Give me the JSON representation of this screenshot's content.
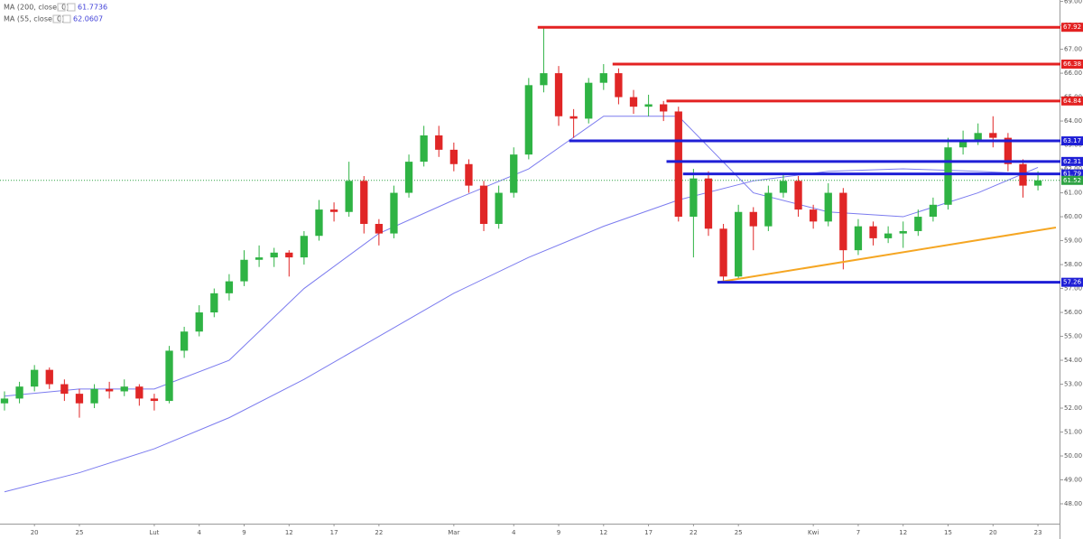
{
  "chart_data": {
    "type": "candlestick",
    "x": [
      0,
      1,
      2,
      3,
      4,
      5,
      6,
      7,
      8,
      9,
      10,
      11,
      12,
      13,
      14,
      15,
      16,
      17,
      18,
      19,
      20,
      21,
      22,
      23,
      24,
      25,
      26,
      27,
      28,
      29,
      30,
      31,
      32,
      33,
      34,
      35,
      36,
      37,
      38,
      39,
      40,
      41,
      42,
      43,
      44,
      45,
      46,
      47,
      48,
      49,
      50,
      51,
      52,
      53,
      54,
      55,
      56,
      57,
      58,
      59,
      60,
      61,
      62,
      63,
      64,
      65,
      66,
      67,
      68,
      69
    ],
    "open": [
      52.2,
      52.4,
      52.9,
      53.6,
      53.0,
      52.6,
      52.2,
      52.8,
      52.7,
      52.9,
      52.4,
      52.3,
      54.4,
      55.2,
      56.0,
      56.8,
      57.3,
      58.2,
      58.3,
      58.5,
      58.3,
      59.2,
      60.3,
      60.2,
      61.5,
      59.7,
      59.3,
      61.0,
      62.3,
      63.4,
      62.8,
      62.2,
      61.3,
      59.7,
      61.0,
      62.6,
      65.5,
      66.0,
      64.2,
      64.1,
      65.6,
      66.0,
      65.0,
      64.6,
      64.7,
      64.4,
      60.0,
      61.6,
      59.5,
      57.5,
      60.2,
      59.6,
      61.0,
      61.5,
      60.3,
      59.8,
      61.0,
      58.6,
      59.6,
      59.1,
      59.3,
      59.4,
      60.0,
      60.5,
      62.9,
      63.2,
      63.5,
      63.3,
      62.2,
      61.3
    ],
    "high": [
      52.7,
      53.1,
      53.8,
      53.7,
      53.2,
      52.8,
      53.0,
      53.1,
      53.2,
      53.0,
      52.6,
      54.6,
      55.4,
      56.3,
      57.0,
      57.6,
      58.6,
      58.8,
      58.7,
      58.6,
      59.4,
      60.7,
      60.6,
      62.3,
      61.7,
      59.9,
      61.3,
      62.6,
      63.8,
      63.8,
      63.1,
      62.4,
      61.5,
      61.3,
      62.9,
      65.8,
      67.92,
      66.3,
      64.5,
      65.8,
      66.38,
      66.2,
      65.3,
      65.1,
      64.84,
      64.6,
      62.0,
      61.9,
      59.7,
      60.5,
      60.4,
      61.3,
      61.8,
      61.7,
      60.5,
      61.4,
      61.2,
      59.9,
      59.8,
      59.6,
      59.8,
      60.3,
      60.8,
      63.3,
      63.6,
      63.9,
      64.2,
      63.5,
      62.4,
      61.9
    ],
    "low": [
      51.9,
      52.2,
      52.7,
      52.8,
      52.3,
      51.6,
      52.0,
      52.4,
      52.5,
      52.1,
      51.9,
      52.2,
      54.1,
      55.0,
      55.8,
      56.5,
      57.1,
      57.9,
      57.9,
      57.5,
      58.0,
      59.0,
      59.8,
      60.0,
      59.3,
      58.8,
      59.1,
      60.8,
      62.1,
      62.5,
      61.9,
      61.0,
      59.4,
      59.5,
      60.8,
      62.4,
      65.2,
      63.8,
      63.3,
      63.9,
      65.3,
      64.7,
      64.3,
      64.2,
      64.0,
      59.8,
      58.3,
      59.2,
      57.26,
      57.4,
      58.6,
      59.4,
      60.8,
      60.0,
      59.5,
      59.6,
      57.8,
      58.4,
      58.8,
      58.9,
      58.7,
      59.2,
      59.8,
      60.3,
      62.6,
      63.0,
      62.9,
      61.9,
      60.8,
      61.1
    ],
    "close": [
      52.4,
      52.9,
      53.6,
      53.0,
      52.6,
      52.2,
      52.8,
      52.7,
      52.9,
      52.4,
      52.3,
      54.4,
      55.2,
      56.0,
      56.8,
      57.3,
      58.2,
      58.3,
      58.5,
      58.3,
      59.2,
      60.3,
      60.2,
      61.5,
      59.7,
      59.3,
      61.0,
      62.3,
      63.4,
      62.8,
      62.2,
      61.3,
      59.7,
      61.0,
      62.6,
      65.5,
      66.0,
      64.2,
      64.1,
      65.6,
      66.0,
      65.0,
      64.6,
      64.7,
      64.4,
      60.0,
      61.6,
      59.5,
      57.5,
      60.2,
      59.6,
      61.0,
      61.5,
      60.3,
      59.8,
      61.0,
      58.6,
      59.6,
      59.1,
      59.3,
      59.4,
      60.0,
      60.5,
      62.9,
      63.2,
      63.5,
      63.3,
      62.2,
      61.3,
      61.52
    ],
    "up_color": "#2fb344",
    "down_color": "#e02626",
    "series": [
      {
        "name": "MA (200, close, 0)",
        "color": "#7b7bef",
        "last": 61.7736,
        "x": [
          0,
          5,
          10,
          15,
          20,
          25,
          30,
          35,
          40,
          45,
          50,
          55,
          60,
          65,
          69
        ],
        "values": [
          48.5,
          49.3,
          50.3,
          51.6,
          53.2,
          55.0,
          56.8,
          58.3,
          59.6,
          60.7,
          61.5,
          61.9,
          62.0,
          61.9,
          61.7736
        ]
      },
      {
        "name": "MA (55, close, 0)",
        "color": "#7b7bef",
        "last": 62.0607,
        "x": [
          0,
          5,
          10,
          15,
          20,
          25,
          30,
          35,
          40,
          45,
          50,
          55,
          60,
          65,
          69
        ],
        "values": [
          52.5,
          52.8,
          52.8,
          54.0,
          57.0,
          59.3,
          60.7,
          62.0,
          64.2,
          64.2,
          61.0,
          60.2,
          60.0,
          61.0,
          62.0607
        ]
      }
    ],
    "levels": [
      {
        "value": 67.92,
        "color": "#e32222",
        "from": 35.6
      },
      {
        "value": 66.38,
        "color": "#e32222",
        "from": 40.6
      },
      {
        "value": 64.84,
        "color": "#e32222",
        "from": 44.2
      },
      {
        "value": 63.17,
        "color": "#1f1fd6",
        "from": 37.7
      },
      {
        "value": 62.31,
        "color": "#1f1fd6",
        "from": 44.2
      },
      {
        "value": 61.79,
        "color": "#1f1fd6",
        "from": 45.3
      },
      {
        "value": 57.26,
        "color": "#1f1fd6",
        "from": 47.6
      }
    ],
    "price_line": {
      "value": 61.52,
      "color": "#2fa344"
    },
    "trendline": {
      "color": "#f5a623",
      "x": [
        47.6,
        70.2
      ],
      "values": [
        57.26,
        59.55
      ]
    },
    "xlim": [
      -0.3,
      70.2
    ],
    "ylim": [
      47.17,
      69.06
    ],
    "xticks": [
      {
        "value": 2,
        "label": "20"
      },
      {
        "value": 5,
        "label": "25"
      },
      {
        "value": 10,
        "label": "Lut"
      },
      {
        "value": 13,
        "label": "4"
      },
      {
        "value": 16,
        "label": "9"
      },
      {
        "value": 19,
        "label": "12"
      },
      {
        "value": 22,
        "label": "17"
      },
      {
        "value": 25,
        "label": "22"
      },
      {
        "value": 30,
        "label": "Mar"
      },
      {
        "value": 34,
        "label": "4"
      },
      {
        "value": 37,
        "label": "9"
      },
      {
        "value": 40,
        "label": "12"
      },
      {
        "value": 43,
        "label": "17"
      },
      {
        "value": 46,
        "label": "22"
      },
      {
        "value": 49,
        "label": "25"
      },
      {
        "value": 54,
        "label": "Kwi"
      },
      {
        "value": 57,
        "label": "7"
      },
      {
        "value": 60,
        "label": "12"
      },
      {
        "value": 63,
        "label": "15"
      },
      {
        "value": 66,
        "label": "20"
      },
      {
        "value": 69,
        "label": "23"
      }
    ],
    "yticks": [
      {
        "value": 48,
        "label": "48.00"
      },
      {
        "value": 49,
        "label": "49.00"
      },
      {
        "value": 50,
        "label": "50.00"
      },
      {
        "value": 51,
        "label": "51.00"
      },
      {
        "value": 52,
        "label": "52.00"
      },
      {
        "value": 53,
        "label": "53.00"
      },
      {
        "value": 54,
        "label": "54.00"
      },
      {
        "value": 55,
        "label": "55.00"
      },
      {
        "value": 56,
        "label": "56.00"
      },
      {
        "value": 57,
        "label": "57.00"
      },
      {
        "value": 58,
        "label": "58.00"
      },
      {
        "value": 59,
        "label": "59.00"
      },
      {
        "value": 60,
        "label": "60.00"
      },
      {
        "value": 61,
        "label": "61.00"
      },
      {
        "value": 62,
        "label": "62.00"
      },
      {
        "value": 63,
        "label": "63.00"
      },
      {
        "value": 64,
        "label": "64.00"
      },
      {
        "value": 65,
        "label": "65.00"
      },
      {
        "value": 66,
        "label": "66.00"
      },
      {
        "value": 67,
        "label": "67.00"
      },
      {
        "value": 68,
        "label": "68.00"
      },
      {
        "value": 69,
        "label": "69.00"
      }
    ],
    "grid": false
  }
}
